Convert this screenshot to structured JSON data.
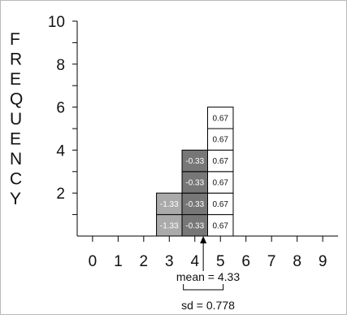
{
  "chart_data": {
    "type": "bar",
    "ylabel": "FREQUENCY",
    "x_ticks": [
      0,
      1,
      2,
      3,
      4,
      5,
      6,
      7,
      8,
      9
    ],
    "xlim": [
      -0.6,
      9.6
    ],
    "ylim": [
      0,
      10
    ],
    "y_ticks": [
      2,
      4,
      6,
      8,
      10
    ],
    "categories": [
      3,
      4,
      5
    ],
    "values": [
      2,
      4,
      6
    ],
    "cells": [
      [
        "-1.33",
        "-1.33"
      ],
      [
        "-0.33",
        "-0.33",
        "-0.33",
        "-0.33"
      ],
      [
        "0.67",
        "0.67",
        "0.67",
        "0.67",
        "0.67",
        "0.67"
      ]
    ],
    "bar_colors": [
      "#aaaaaa",
      "#777777",
      "#ffffff"
    ],
    "mean": 4.33,
    "mean_label": "mean = 4.33",
    "sd": 0.778,
    "sd_label": "sd = 0.778"
  }
}
